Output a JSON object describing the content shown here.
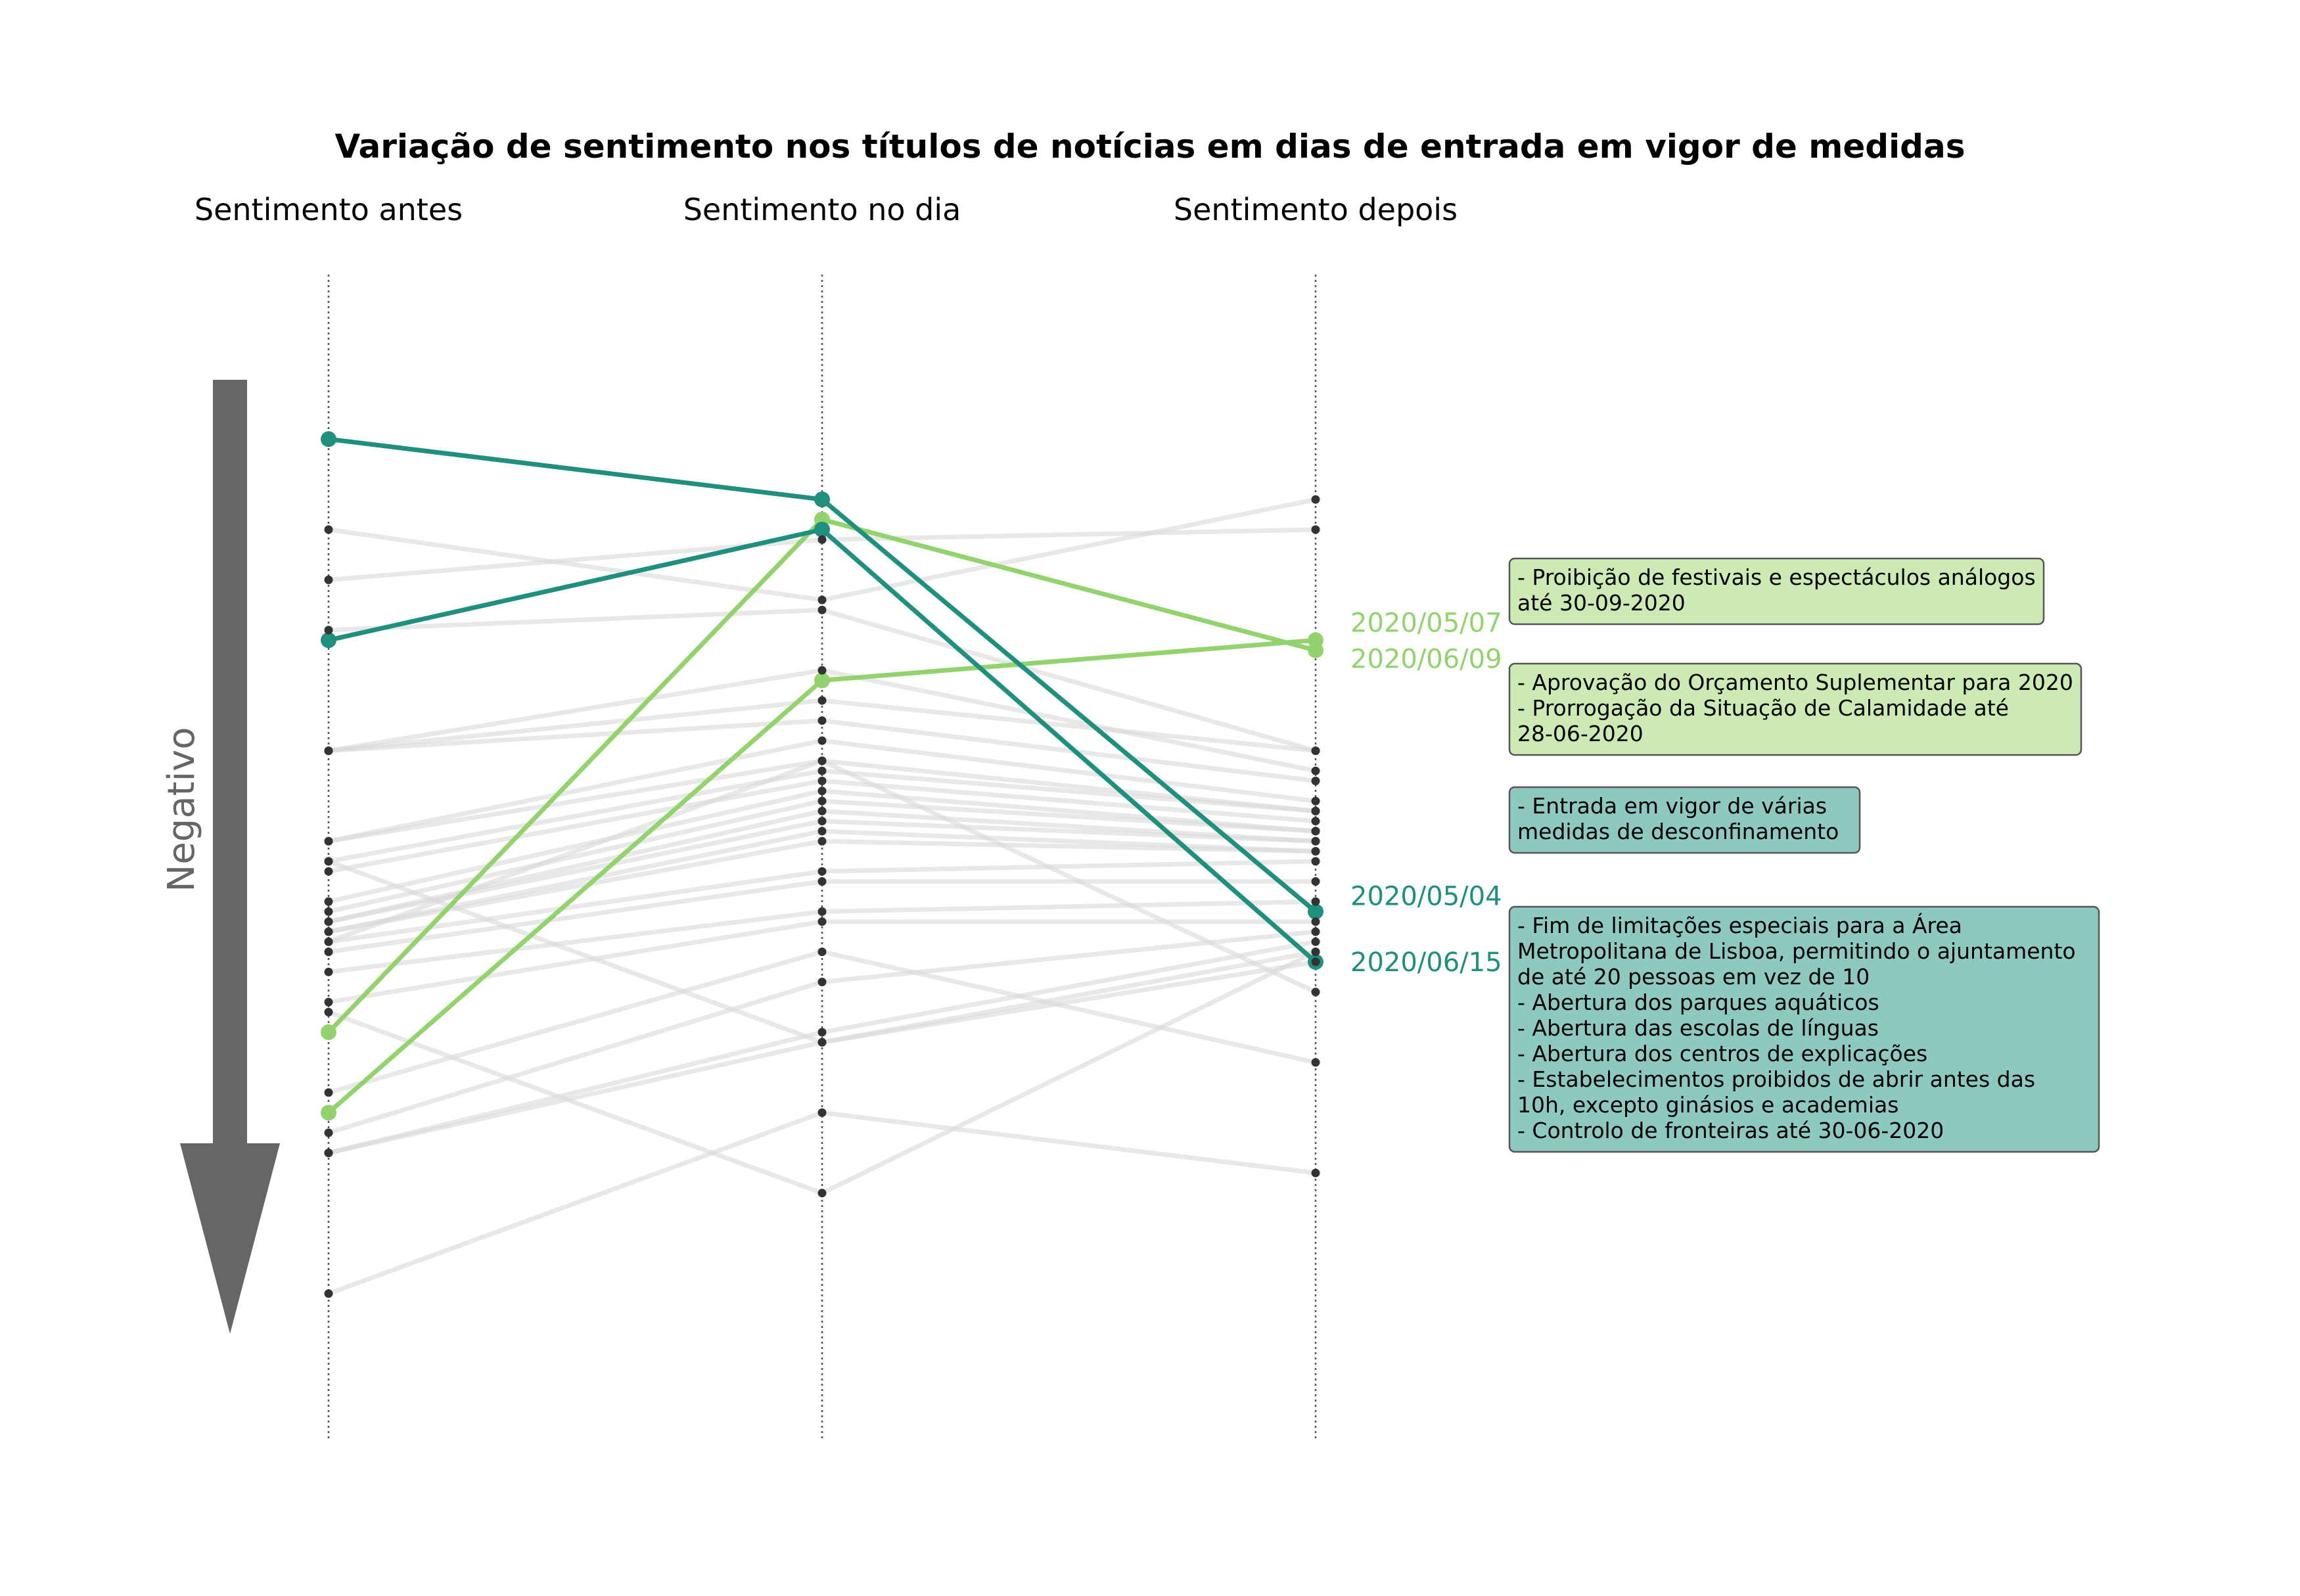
{
  "chart_data": {
    "type": "line",
    "title": "Variação de sentimento nos títulos de notícias em dias de entrada em vigor de medidas",
    "columns": [
      "Sentimento antes",
      "Sentimento no dia",
      "Sentimento depois"
    ],
    "side_label": "Negativo",
    "y_direction": "more negative downward",
    "colors": {
      "background_line": "#d9d9d9",
      "dot": "#333333",
      "light_green": "#92d36e",
      "teal": "#1f8f7e",
      "light_green_box": "#cdeab5",
      "teal_box": "#8ec9c0",
      "arrow": "#666666",
      "axis": "#555555"
    },
    "background_series": [
      [
        0.2,
        0.27,
        0.17
      ],
      [
        0.25,
        0.21,
        0.2
      ],
      [
        0.3,
        0.28,
        0.42
      ],
      [
        0.42,
        0.34,
        0.44
      ],
      [
        0.42,
        0.37,
        0.42
      ],
      [
        0.42,
        0.39,
        0.45
      ],
      [
        0.51,
        0.41,
        0.47
      ],
      [
        0.51,
        0.43,
        0.48
      ],
      [
        0.53,
        0.44,
        0.48
      ],
      [
        0.54,
        0.45,
        0.49
      ],
      [
        0.57,
        0.46,
        0.5
      ],
      [
        0.58,
        0.47,
        0.5
      ],
      [
        0.59,
        0.48,
        0.51
      ],
      [
        0.59,
        0.49,
        0.51
      ],
      [
        0.6,
        0.5,
        0.52
      ],
      [
        0.6,
        0.51,
        0.52
      ],
      [
        0.61,
        0.54,
        0.53
      ],
      [
        0.62,
        0.55,
        0.55
      ],
      [
        0.64,
        0.58,
        0.57
      ],
      [
        0.67,
        0.59,
        0.59
      ],
      [
        0.76,
        0.62,
        0.73
      ],
      [
        0.8,
        0.65,
        0.6
      ],
      [
        0.82,
        0.7,
        0.61
      ],
      [
        0.82,
        0.71,
        0.63
      ],
      [
        0.96,
        0.78,
        0.84
      ],
      [
        0.61,
        0.43,
        0.66
      ],
      [
        0.53,
        0.71,
        0.62
      ],
      [
        0.68,
        0.86,
        0.62
      ]
    ],
    "highlighted_series": [
      {
        "date": "2020/05/07",
        "values": [
          0.7,
          0.19,
          0.32
        ],
        "color": "#92d36e",
        "annotation": [
          "- Proibição de festivais e espectáculos análogos",
          "  até 30-09-2020"
        ],
        "annotation_bg": "#cdeab5"
      },
      {
        "date": "2020/06/09",
        "values": [
          0.78,
          0.35,
          0.31
        ],
        "color": "#92d36e",
        "annotation": [
          "- Aprovação do Orçamento Suplementar para 2020",
          "- Prorrogação da Situação de Calamidade até",
          "  28-06-2020"
        ],
        "annotation_bg": "#cdeab5"
      },
      {
        "date": "2020/05/04",
        "values": [
          0.11,
          0.17,
          0.58
        ],
        "color": "#1f8f7e",
        "annotation": [
          "- Entrada em vigor de várias",
          "  medidas de desconfinamento"
        ],
        "annotation_bg": "#8ec9c0"
      },
      {
        "date": "2020/06/15",
        "values": [
          0.31,
          0.2,
          0.63
        ],
        "color": "#1f8f7e",
        "annotation": [
          "- Fim de limitações especiais para a Área",
          "  Metropolitana de Lisboa, permitindo o ajuntamento",
          "  de até 20 pessoas em vez de 10",
          "- Abertura dos parques aquáticos",
          "- Abertura das escolas de línguas",
          "- Abertura dos centros de explicações",
          "- Estabelecimentos proibidos de abrir antes das",
          "  10h, excepto ginásios e academias",
          "- Controlo de fronteiras até 30-06-2020"
        ],
        "annotation_bg": "#8ec9c0"
      }
    ]
  }
}
